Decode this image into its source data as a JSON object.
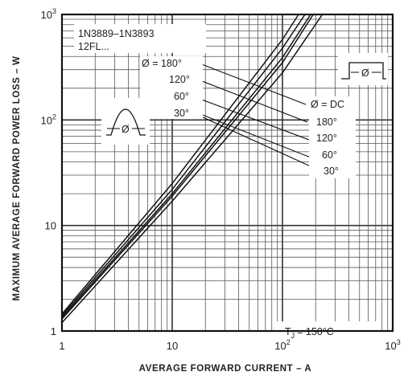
{
  "chart_data": {
    "type": "line",
    "x_scale": "log",
    "y_scale": "log",
    "xlim": [
      1,
      1000
    ],
    "ylim": [
      1,
      1000
    ],
    "grid": true,
    "xlabel": "AVERAGE FORWARD CURRENT – A",
    "ylabel": "MAXIMUM AVERAGE FORWARD POWER LOSS – W",
    "x_ticks": [
      {
        "value": 1,
        "base": "1",
        "exp": ""
      },
      {
        "value": 10,
        "base": "10",
        "exp": ""
      },
      {
        "value": 100,
        "base": "10",
        "exp": "2"
      },
      {
        "value": 1000,
        "base": "10",
        "exp": "3"
      }
    ],
    "y_ticks": [
      {
        "value": 1,
        "base": "1",
        "exp": ""
      },
      {
        "value": 10,
        "base": "10",
        "exp": ""
      },
      {
        "value": 100,
        "base": "10",
        "exp": "2"
      },
      {
        "value": 1000,
        "base": "10",
        "exp": "3"
      }
    ],
    "series": [
      {
        "name": "Ø = 180°",
        "x": [
          1,
          10,
          100,
          190
        ],
        "y": [
          1.3,
          19,
          350,
          1000
        ]
      },
      {
        "name": "120°",
        "x": [
          1,
          10,
          100,
          180
        ],
        "y": [
          1.35,
          20,
          390,
          1000
        ]
      },
      {
        "name": "60°",
        "x": [
          1,
          10,
          100,
          160
        ],
        "y": [
          1.4,
          22,
          480,
          1000
        ]
      },
      {
        "name": "30°",
        "x": [
          1,
          10,
          100,
          140
        ],
        "y": [
          1.45,
          25,
          580,
          1000
        ]
      },
      {
        "name": "Ø = DC",
        "x": [
          1,
          10,
          100,
          230
        ],
        "y": [
          1.2,
          17,
          280,
          1000
        ]
      }
    ],
    "annotations": {
      "part_line1": "1N3889–1N3893",
      "part_line2": "12FL...",
      "left_group": [
        "Ø = 180°",
        "120°",
        "60°",
        "30°"
      ],
      "right_group": [
        "Ø = DC",
        "180°",
        "120°",
        "60°",
        "30°"
      ],
      "waveform_half_sine_label": "Ø",
      "waveform_square_label": "Ø",
      "tj_label": "T",
      "tj_sub": "J",
      "tj_value": "= 150°C"
    }
  }
}
